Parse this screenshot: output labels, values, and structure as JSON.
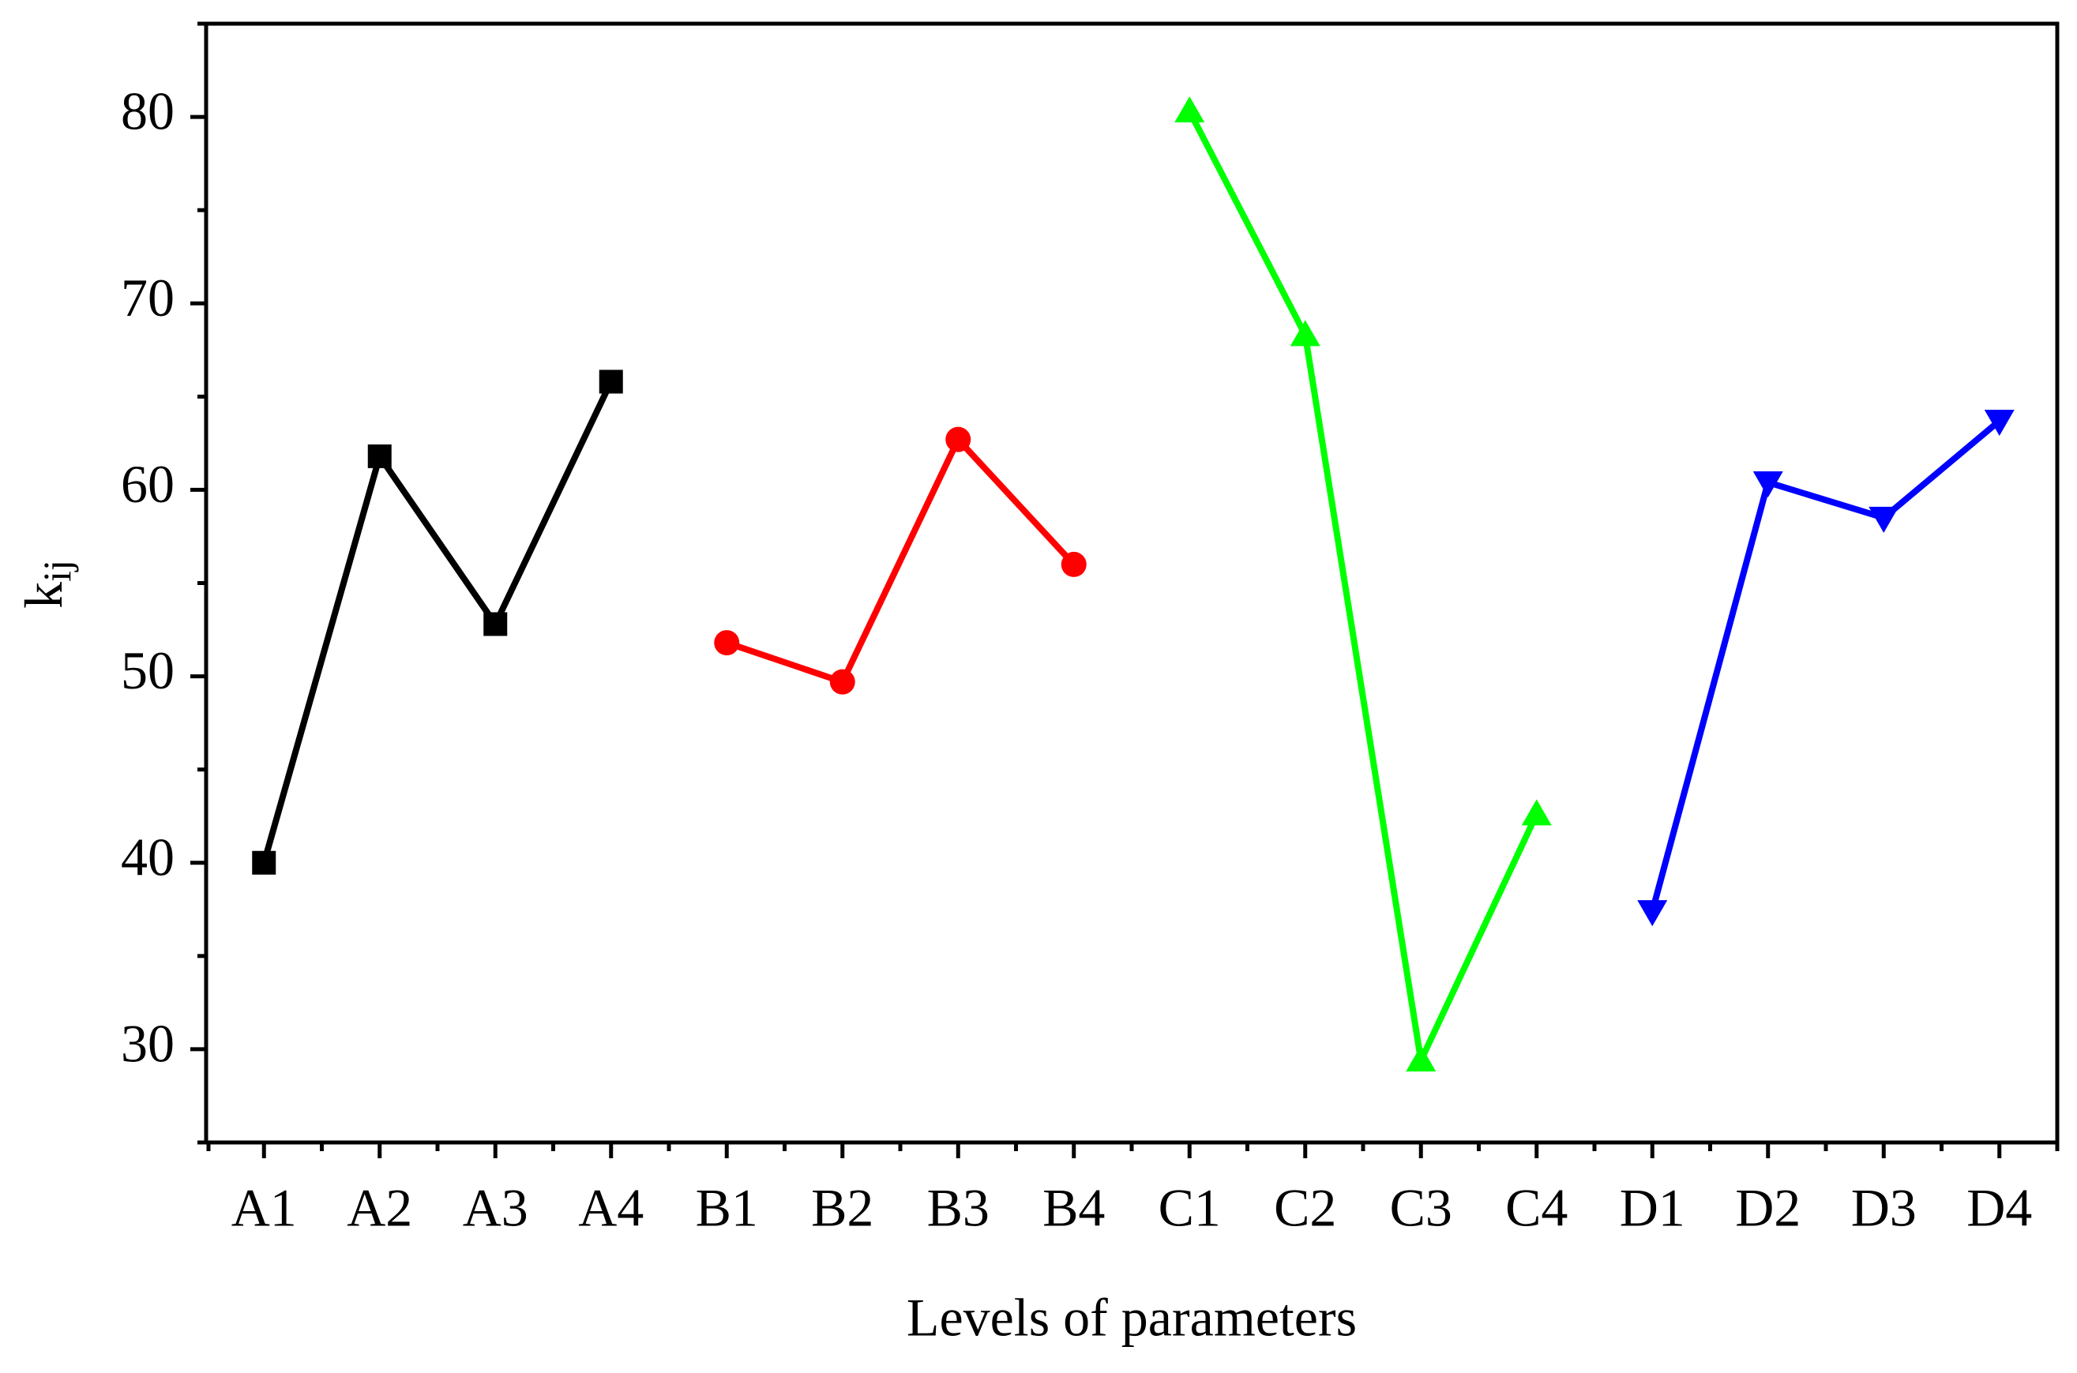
{
  "chart_data": {
    "type": "line",
    "xlabel": "Levels of parameters",
    "ylabel": {
      "text": "k",
      "subscript": "ij"
    },
    "categories": [
      "A1",
      "A2",
      "A3",
      "A4",
      "B1",
      "B2",
      "B3",
      "B4",
      "C1",
      "C2",
      "C3",
      "C4",
      "D1",
      "D2",
      "D3",
      "D4"
    ],
    "series": [
      {
        "color": "#000000",
        "marker": "square",
        "values": [
          40.0,
          61.8,
          52.8,
          65.8,
          null,
          null,
          null,
          null,
          null,
          null,
          null,
          null,
          null,
          null,
          null,
          null
        ]
      },
      {
        "color": "#ff0000",
        "marker": "circle",
        "values": [
          null,
          null,
          null,
          null,
          51.8,
          49.7,
          62.7,
          56.0,
          null,
          null,
          null,
          null,
          null,
          null,
          null,
          null
        ]
      },
      {
        "color": "#00ff00",
        "marker": "triangle-up",
        "values": [
          null,
          null,
          null,
          null,
          null,
          null,
          null,
          null,
          80.3,
          68.3,
          29.4,
          42.6,
          null,
          null,
          null,
          null
        ]
      },
      {
        "color": "#0000ff",
        "marker": "triangle-down",
        "values": [
          null,
          null,
          null,
          null,
          null,
          null,
          null,
          null,
          null,
          null,
          null,
          null,
          37.4,
          60.4,
          58.5,
          63.7
        ]
      }
    ],
    "ylim": [
      25,
      85
    ],
    "yticks": [
      30,
      40,
      50,
      60,
      70,
      80
    ],
    "grid": false
  }
}
